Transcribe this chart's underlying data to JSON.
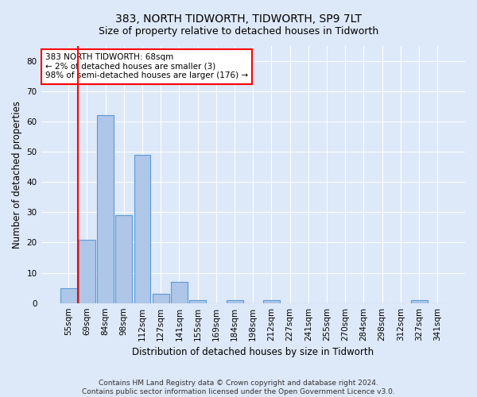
{
  "title": "383, NORTH TIDWORTH, TIDWORTH, SP9 7LT",
  "subtitle": "Size of property relative to detached houses in Tidworth",
  "xlabel": "Distribution of detached houses by size in Tidworth",
  "ylabel": "Number of detached properties",
  "footnote1": "Contains HM Land Registry data © Crown copyright and database right 2024.",
  "footnote2": "Contains public sector information licensed under the Open Government Licence v3.0.",
  "annotation_line1": "383 NORTH TIDWORTH: 68sqm",
  "annotation_line2": "← 2% of detached houses are smaller (3)",
  "annotation_line3": "98% of semi-detached houses are larger (176) →",
  "bar_labels": [
    "55sqm",
    "69sqm",
    "84sqm",
    "98sqm",
    "112sqm",
    "127sqm",
    "141sqm",
    "155sqm",
    "169sqm",
    "184sqm",
    "198sqm",
    "212sqm",
    "227sqm",
    "241sqm",
    "255sqm",
    "270sqm",
    "284sqm",
    "298sqm",
    "312sqm",
    "327sqm",
    "341sqm"
  ],
  "bar_values": [
    5,
    21,
    62,
    29,
    49,
    3,
    7,
    1,
    0,
    1,
    0,
    1,
    0,
    0,
    0,
    0,
    0,
    0,
    0,
    1,
    0
  ],
  "bar_color": "#aec6e8",
  "bar_edge_color": "#5b9bd5",
  "highlight_line_color": "red",
  "annotation_box_color": "white",
  "annotation_box_edge": "red",
  "ylim": [
    0,
    85
  ],
  "yticks": [
    0,
    10,
    20,
    30,
    40,
    50,
    60,
    70,
    80
  ],
  "bg_color": "#dde8f8",
  "axes_bg_color": "#dde8f8",
  "grid_color": "white",
  "title_fontsize": 10,
  "subtitle_fontsize": 9,
  "tick_fontsize": 7.5,
  "ylabel_fontsize": 8.5,
  "xlabel_fontsize": 8.5,
  "footnote_fontsize": 6.5
}
